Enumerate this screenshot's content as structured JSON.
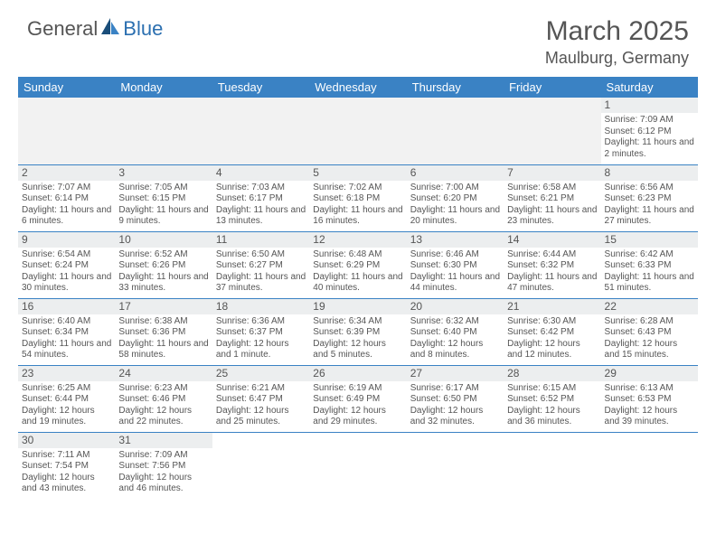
{
  "logo": {
    "text1": "General",
    "text2": "Blue"
  },
  "title": "March 2025",
  "location": "Maulburg, Germany",
  "colors": {
    "header_bg": "#3a82c4",
    "header_text": "#ffffff",
    "border": "#3a82c4",
    "daynum_bg": "#eceeef",
    "text": "#555555",
    "empty_bg": "#f2f2f2"
  },
  "weekdays": [
    "Sunday",
    "Monday",
    "Tuesday",
    "Wednesday",
    "Thursday",
    "Friday",
    "Saturday"
  ],
  "weeks": [
    [
      null,
      null,
      null,
      null,
      null,
      null,
      {
        "n": "1",
        "sr": "Sunrise: 7:09 AM",
        "ss": "Sunset: 6:12 PM",
        "dl": "Daylight: 11 hours and 2 minutes."
      }
    ],
    [
      {
        "n": "2",
        "sr": "Sunrise: 7:07 AM",
        "ss": "Sunset: 6:14 PM",
        "dl": "Daylight: 11 hours and 6 minutes."
      },
      {
        "n": "3",
        "sr": "Sunrise: 7:05 AM",
        "ss": "Sunset: 6:15 PM",
        "dl": "Daylight: 11 hours and 9 minutes."
      },
      {
        "n": "4",
        "sr": "Sunrise: 7:03 AM",
        "ss": "Sunset: 6:17 PM",
        "dl": "Daylight: 11 hours and 13 minutes."
      },
      {
        "n": "5",
        "sr": "Sunrise: 7:02 AM",
        "ss": "Sunset: 6:18 PM",
        "dl": "Daylight: 11 hours and 16 minutes."
      },
      {
        "n": "6",
        "sr": "Sunrise: 7:00 AM",
        "ss": "Sunset: 6:20 PM",
        "dl": "Daylight: 11 hours and 20 minutes."
      },
      {
        "n": "7",
        "sr": "Sunrise: 6:58 AM",
        "ss": "Sunset: 6:21 PM",
        "dl": "Daylight: 11 hours and 23 minutes."
      },
      {
        "n": "8",
        "sr": "Sunrise: 6:56 AM",
        "ss": "Sunset: 6:23 PM",
        "dl": "Daylight: 11 hours and 27 minutes."
      }
    ],
    [
      {
        "n": "9",
        "sr": "Sunrise: 6:54 AM",
        "ss": "Sunset: 6:24 PM",
        "dl": "Daylight: 11 hours and 30 minutes."
      },
      {
        "n": "10",
        "sr": "Sunrise: 6:52 AM",
        "ss": "Sunset: 6:26 PM",
        "dl": "Daylight: 11 hours and 33 minutes."
      },
      {
        "n": "11",
        "sr": "Sunrise: 6:50 AM",
        "ss": "Sunset: 6:27 PM",
        "dl": "Daylight: 11 hours and 37 minutes."
      },
      {
        "n": "12",
        "sr": "Sunrise: 6:48 AM",
        "ss": "Sunset: 6:29 PM",
        "dl": "Daylight: 11 hours and 40 minutes."
      },
      {
        "n": "13",
        "sr": "Sunrise: 6:46 AM",
        "ss": "Sunset: 6:30 PM",
        "dl": "Daylight: 11 hours and 44 minutes."
      },
      {
        "n": "14",
        "sr": "Sunrise: 6:44 AM",
        "ss": "Sunset: 6:32 PM",
        "dl": "Daylight: 11 hours and 47 minutes."
      },
      {
        "n": "15",
        "sr": "Sunrise: 6:42 AM",
        "ss": "Sunset: 6:33 PM",
        "dl": "Daylight: 11 hours and 51 minutes."
      }
    ],
    [
      {
        "n": "16",
        "sr": "Sunrise: 6:40 AM",
        "ss": "Sunset: 6:34 PM",
        "dl": "Daylight: 11 hours and 54 minutes."
      },
      {
        "n": "17",
        "sr": "Sunrise: 6:38 AM",
        "ss": "Sunset: 6:36 PM",
        "dl": "Daylight: 11 hours and 58 minutes."
      },
      {
        "n": "18",
        "sr": "Sunrise: 6:36 AM",
        "ss": "Sunset: 6:37 PM",
        "dl": "Daylight: 12 hours and 1 minute."
      },
      {
        "n": "19",
        "sr": "Sunrise: 6:34 AM",
        "ss": "Sunset: 6:39 PM",
        "dl": "Daylight: 12 hours and 5 minutes."
      },
      {
        "n": "20",
        "sr": "Sunrise: 6:32 AM",
        "ss": "Sunset: 6:40 PM",
        "dl": "Daylight: 12 hours and 8 minutes."
      },
      {
        "n": "21",
        "sr": "Sunrise: 6:30 AM",
        "ss": "Sunset: 6:42 PM",
        "dl": "Daylight: 12 hours and 12 minutes."
      },
      {
        "n": "22",
        "sr": "Sunrise: 6:28 AM",
        "ss": "Sunset: 6:43 PM",
        "dl": "Daylight: 12 hours and 15 minutes."
      }
    ],
    [
      {
        "n": "23",
        "sr": "Sunrise: 6:25 AM",
        "ss": "Sunset: 6:44 PM",
        "dl": "Daylight: 12 hours and 19 minutes."
      },
      {
        "n": "24",
        "sr": "Sunrise: 6:23 AM",
        "ss": "Sunset: 6:46 PM",
        "dl": "Daylight: 12 hours and 22 minutes."
      },
      {
        "n": "25",
        "sr": "Sunrise: 6:21 AM",
        "ss": "Sunset: 6:47 PM",
        "dl": "Daylight: 12 hours and 25 minutes."
      },
      {
        "n": "26",
        "sr": "Sunrise: 6:19 AM",
        "ss": "Sunset: 6:49 PM",
        "dl": "Daylight: 12 hours and 29 minutes."
      },
      {
        "n": "27",
        "sr": "Sunrise: 6:17 AM",
        "ss": "Sunset: 6:50 PM",
        "dl": "Daylight: 12 hours and 32 minutes."
      },
      {
        "n": "28",
        "sr": "Sunrise: 6:15 AM",
        "ss": "Sunset: 6:52 PM",
        "dl": "Daylight: 12 hours and 36 minutes."
      },
      {
        "n": "29",
        "sr": "Sunrise: 6:13 AM",
        "ss": "Sunset: 6:53 PM",
        "dl": "Daylight: 12 hours and 39 minutes."
      }
    ],
    [
      {
        "n": "30",
        "sr": "Sunrise: 7:11 AM",
        "ss": "Sunset: 7:54 PM",
        "dl": "Daylight: 12 hours and 43 minutes."
      },
      {
        "n": "31",
        "sr": "Sunrise: 7:09 AM",
        "ss": "Sunset: 7:56 PM",
        "dl": "Daylight: 12 hours and 46 minutes."
      },
      null,
      null,
      null,
      null,
      null
    ]
  ]
}
